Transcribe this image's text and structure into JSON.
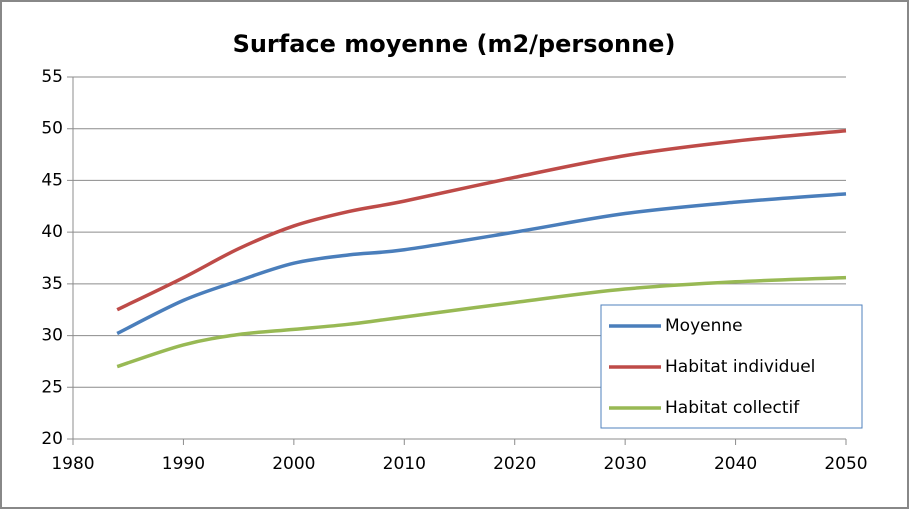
{
  "chart_data": {
    "type": "line",
    "title": "Surface moyenne (m2/personne)",
    "x": [
      1984,
      1990,
      1995,
      2000,
      2005,
      2010,
      2020,
      2030,
      2040,
      2050
    ],
    "series": [
      {
        "name": "Moyenne",
        "color": "#4a7ebb",
        "values": [
          30.2,
          33.4,
          35.3,
          37.0,
          37.8,
          38.3,
          40.0,
          41.8,
          42.9,
          43.7
        ]
      },
      {
        "name": "Habitat individuel",
        "color": "#be4b48",
        "values": [
          32.5,
          35.6,
          38.4,
          40.6,
          42.0,
          43.0,
          45.3,
          47.4,
          48.8,
          49.8
        ]
      },
      {
        "name": "Habitat collectif",
        "color": "#98b954",
        "values": [
          27.0,
          29.1,
          30.1,
          30.6,
          31.1,
          31.8,
          33.2,
          34.5,
          35.2,
          35.6
        ]
      }
    ],
    "xlim": [
      1980,
      2050
    ],
    "xticks": [
      1980,
      1990,
      2000,
      2010,
      2020,
      2030,
      2040,
      2050
    ],
    "ylim": [
      20,
      55
    ],
    "yticks": [
      20,
      25,
      30,
      35,
      40,
      45,
      50,
      55
    ],
    "grid": true,
    "legend": "lower right"
  }
}
